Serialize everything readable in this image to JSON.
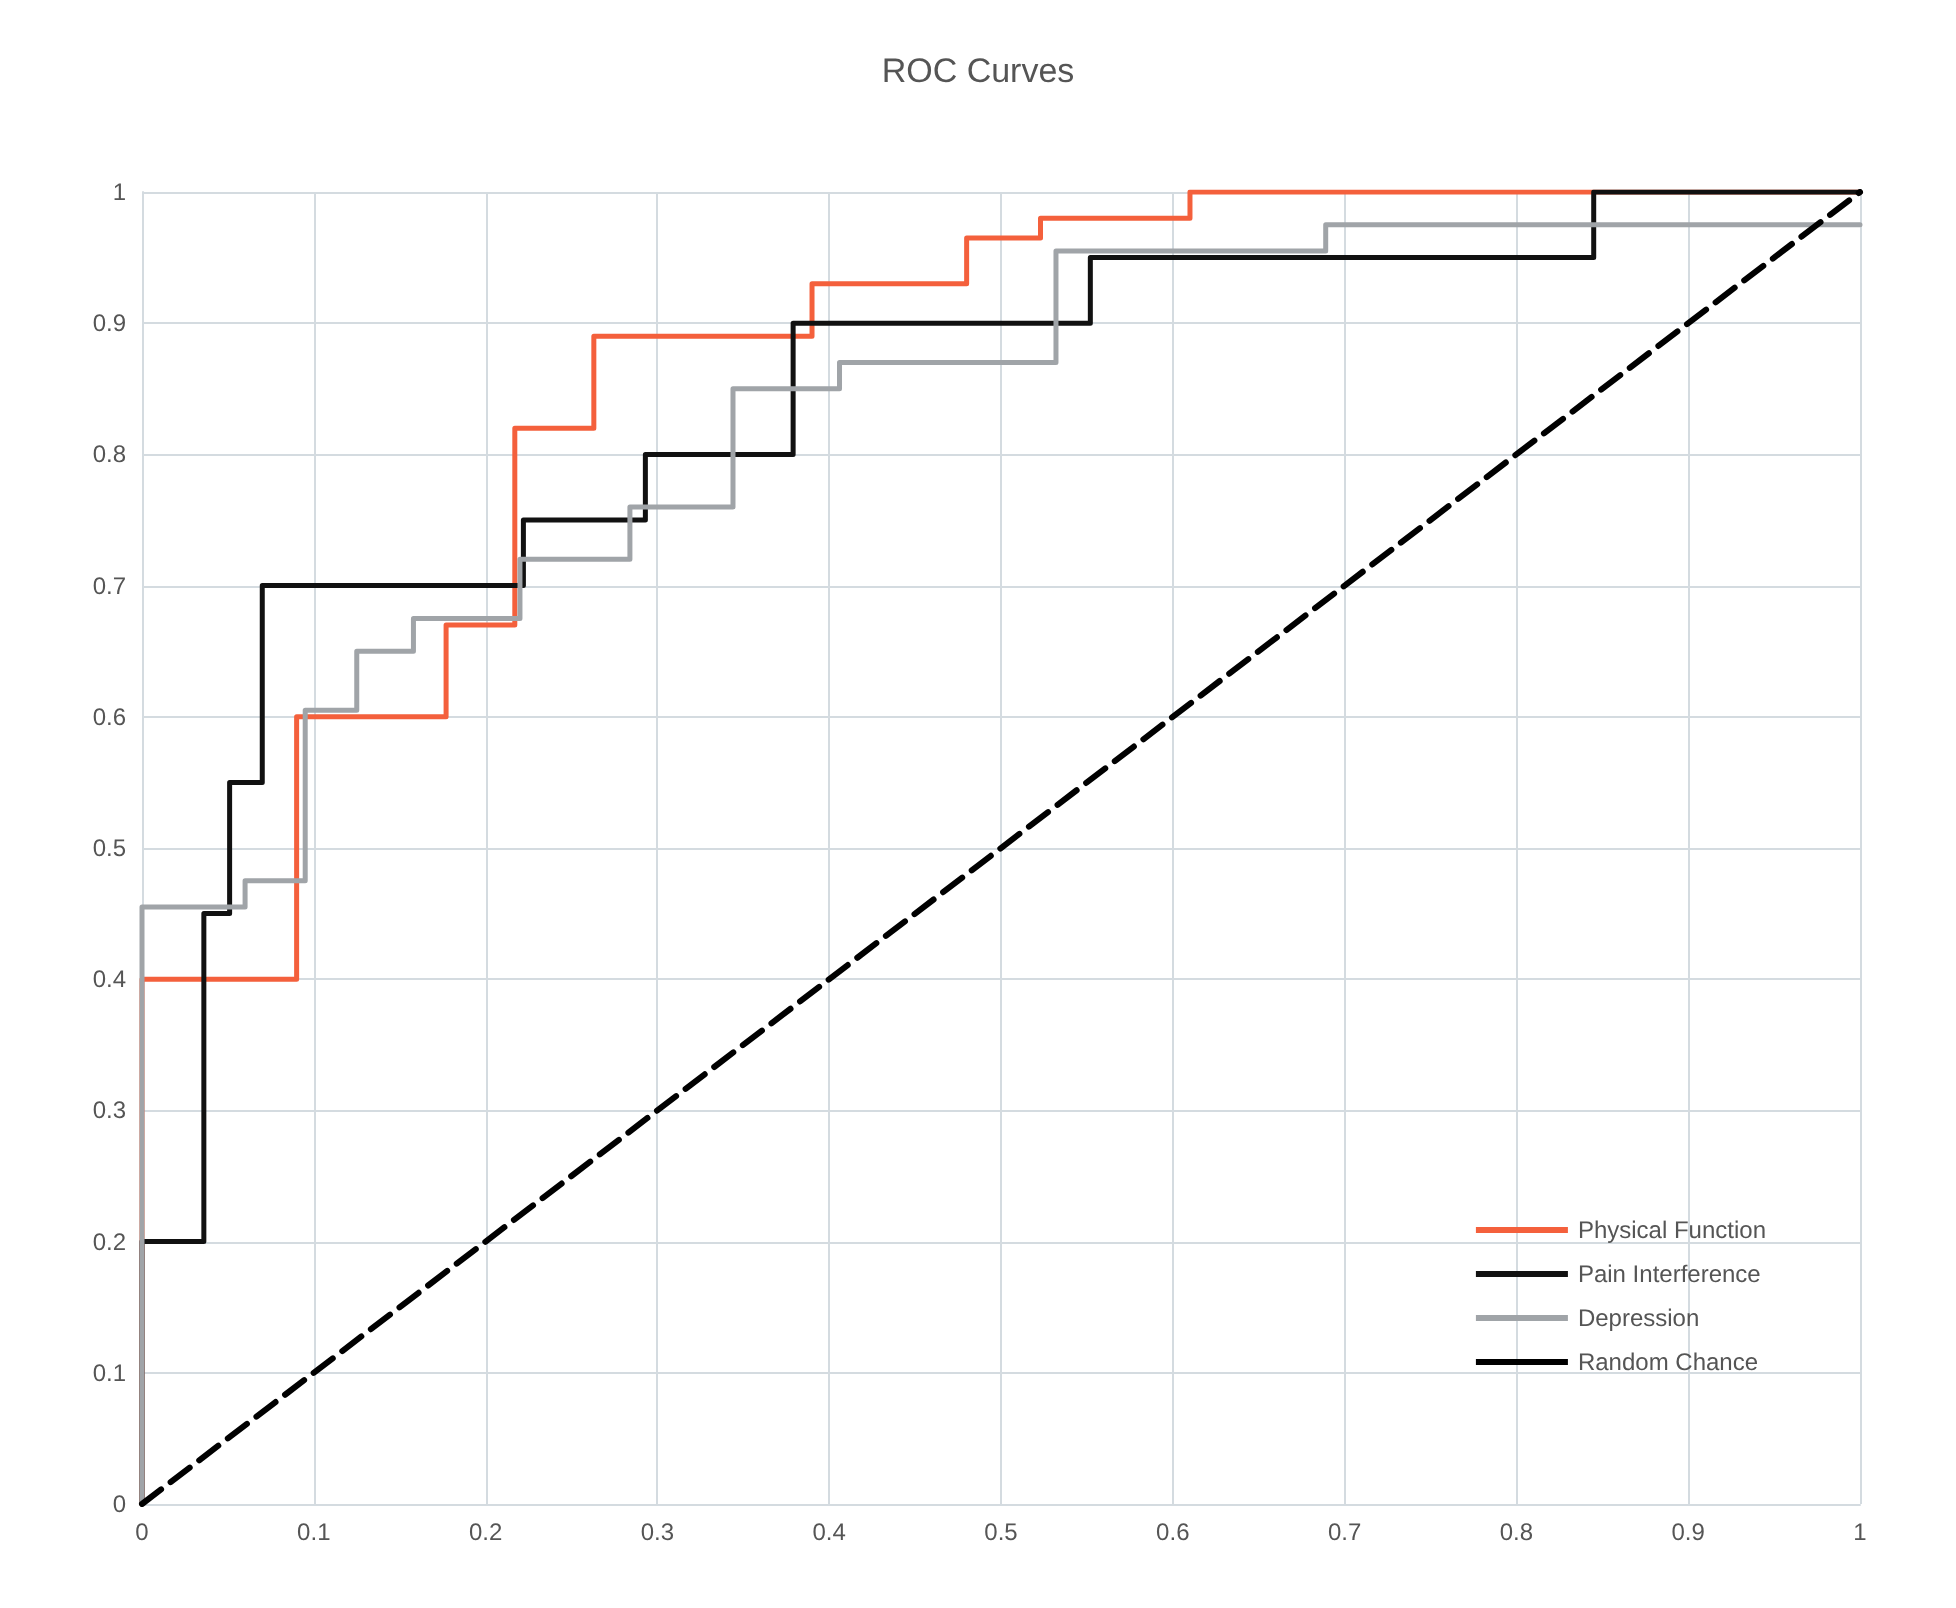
{
  "chart_data": {
    "type": "line",
    "title": "ROC Curves",
    "xlim": [
      0,
      1
    ],
    "ylim": [
      0,
      1
    ],
    "xticks": [
      0,
      0.1,
      0.2,
      0.3,
      0.4,
      0.5,
      0.6,
      0.7,
      0.8,
      0.9,
      1
    ],
    "yticks": [
      0,
      0.1,
      0.2,
      0.3,
      0.4,
      0.5,
      0.6,
      0.7,
      0.8,
      0.9,
      1
    ],
    "grid": true,
    "legend": "bottom right",
    "marker": "none",
    "series": [
      {
        "name": "Physical Function",
        "color": "#f4603c",
        "x": [
          0,
          0,
          0.09,
          0.09,
          0.177,
          0.177,
          0.217,
          0.217,
          0.263,
          0.263,
          0.39,
          0.39,
          0.48,
          0.48,
          0.523,
          0.523,
          0.61,
          0.61,
          1
        ],
        "values": [
          0,
          0.4,
          0.4,
          0.6,
          0.6,
          0.67,
          0.67,
          0.82,
          0.82,
          0.89,
          0.89,
          0.93,
          0.93,
          0.965,
          0.965,
          0.98,
          0.98,
          1,
          1
        ]
      },
      {
        "name": "Pain Interference",
        "color": "#111111",
        "x": [
          0,
          0,
          0.036,
          0.036,
          0.051,
          0.051,
          0.07,
          0.07,
          0.222,
          0.222,
          0.293,
          0.293,
          0.379,
          0.379,
          0.552,
          0.552,
          0.845,
          0.845,
          1
        ],
        "values": [
          0,
          0.2,
          0.2,
          0.45,
          0.45,
          0.55,
          0.55,
          0.7,
          0.7,
          0.75,
          0.75,
          0.8,
          0.8,
          0.9,
          0.9,
          0.95,
          0.95,
          1,
          1
        ]
      },
      {
        "name": "Depression",
        "color": "#a0a4a8",
        "x": [
          0,
          0,
          0.06,
          0.06,
          0.095,
          0.095,
          0.125,
          0.125,
          0.158,
          0.158,
          0.22,
          0.22,
          0.284,
          0.284,
          0.344,
          0.344,
          0.406,
          0.406,
          0.532,
          0.532,
          0.689,
          0.689,
          1
        ],
        "values": [
          0,
          0.455,
          0.455,
          0.475,
          0.475,
          0.605,
          0.605,
          0.65,
          0.65,
          0.675,
          0.675,
          0.72,
          0.72,
          0.76,
          0.76,
          0.85,
          0.85,
          0.87,
          0.87,
          0.955,
          0.955,
          0.975,
          0.975
        ]
      },
      {
        "name": "Random Chance",
        "color": "#000000",
        "line_style": "dashed",
        "x": [
          0,
          1
        ],
        "values": [
          0,
          1
        ]
      }
    ]
  }
}
